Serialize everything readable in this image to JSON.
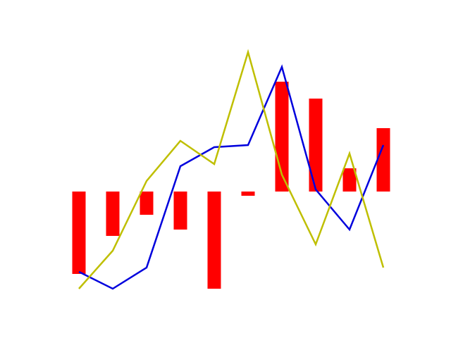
{
  "chart_data": {
    "type": "bar",
    "title": "",
    "xlabel": "",
    "ylabel": "",
    "grid": false,
    "axes_visible": false,
    "x": [
      0,
      1,
      2,
      3,
      4,
      5,
      6,
      7,
      8,
      9
    ],
    "ylim": [
      -0.45,
      0.7
    ],
    "series": [
      {
        "type": "bar",
        "color": "#ff0000",
        "values": [
          -0.39,
          -0.21,
          -0.11,
          -0.18,
          -0.46,
          -0.02,
          0.52,
          0.44,
          0.11,
          0.3
        ]
      },
      {
        "type": "line",
        "color": "#0000dd",
        "values": [
          -0.38,
          -0.46,
          -0.36,
          0.12,
          0.21,
          0.22,
          0.59,
          0.01,
          -0.18,
          0.22
        ]
      },
      {
        "type": "line",
        "color": "#bfbf00",
        "values": [
          -0.46,
          -0.28,
          0.05,
          0.24,
          0.13,
          0.66,
          0.08,
          -0.25,
          0.18,
          -0.36
        ]
      }
    ]
  }
}
